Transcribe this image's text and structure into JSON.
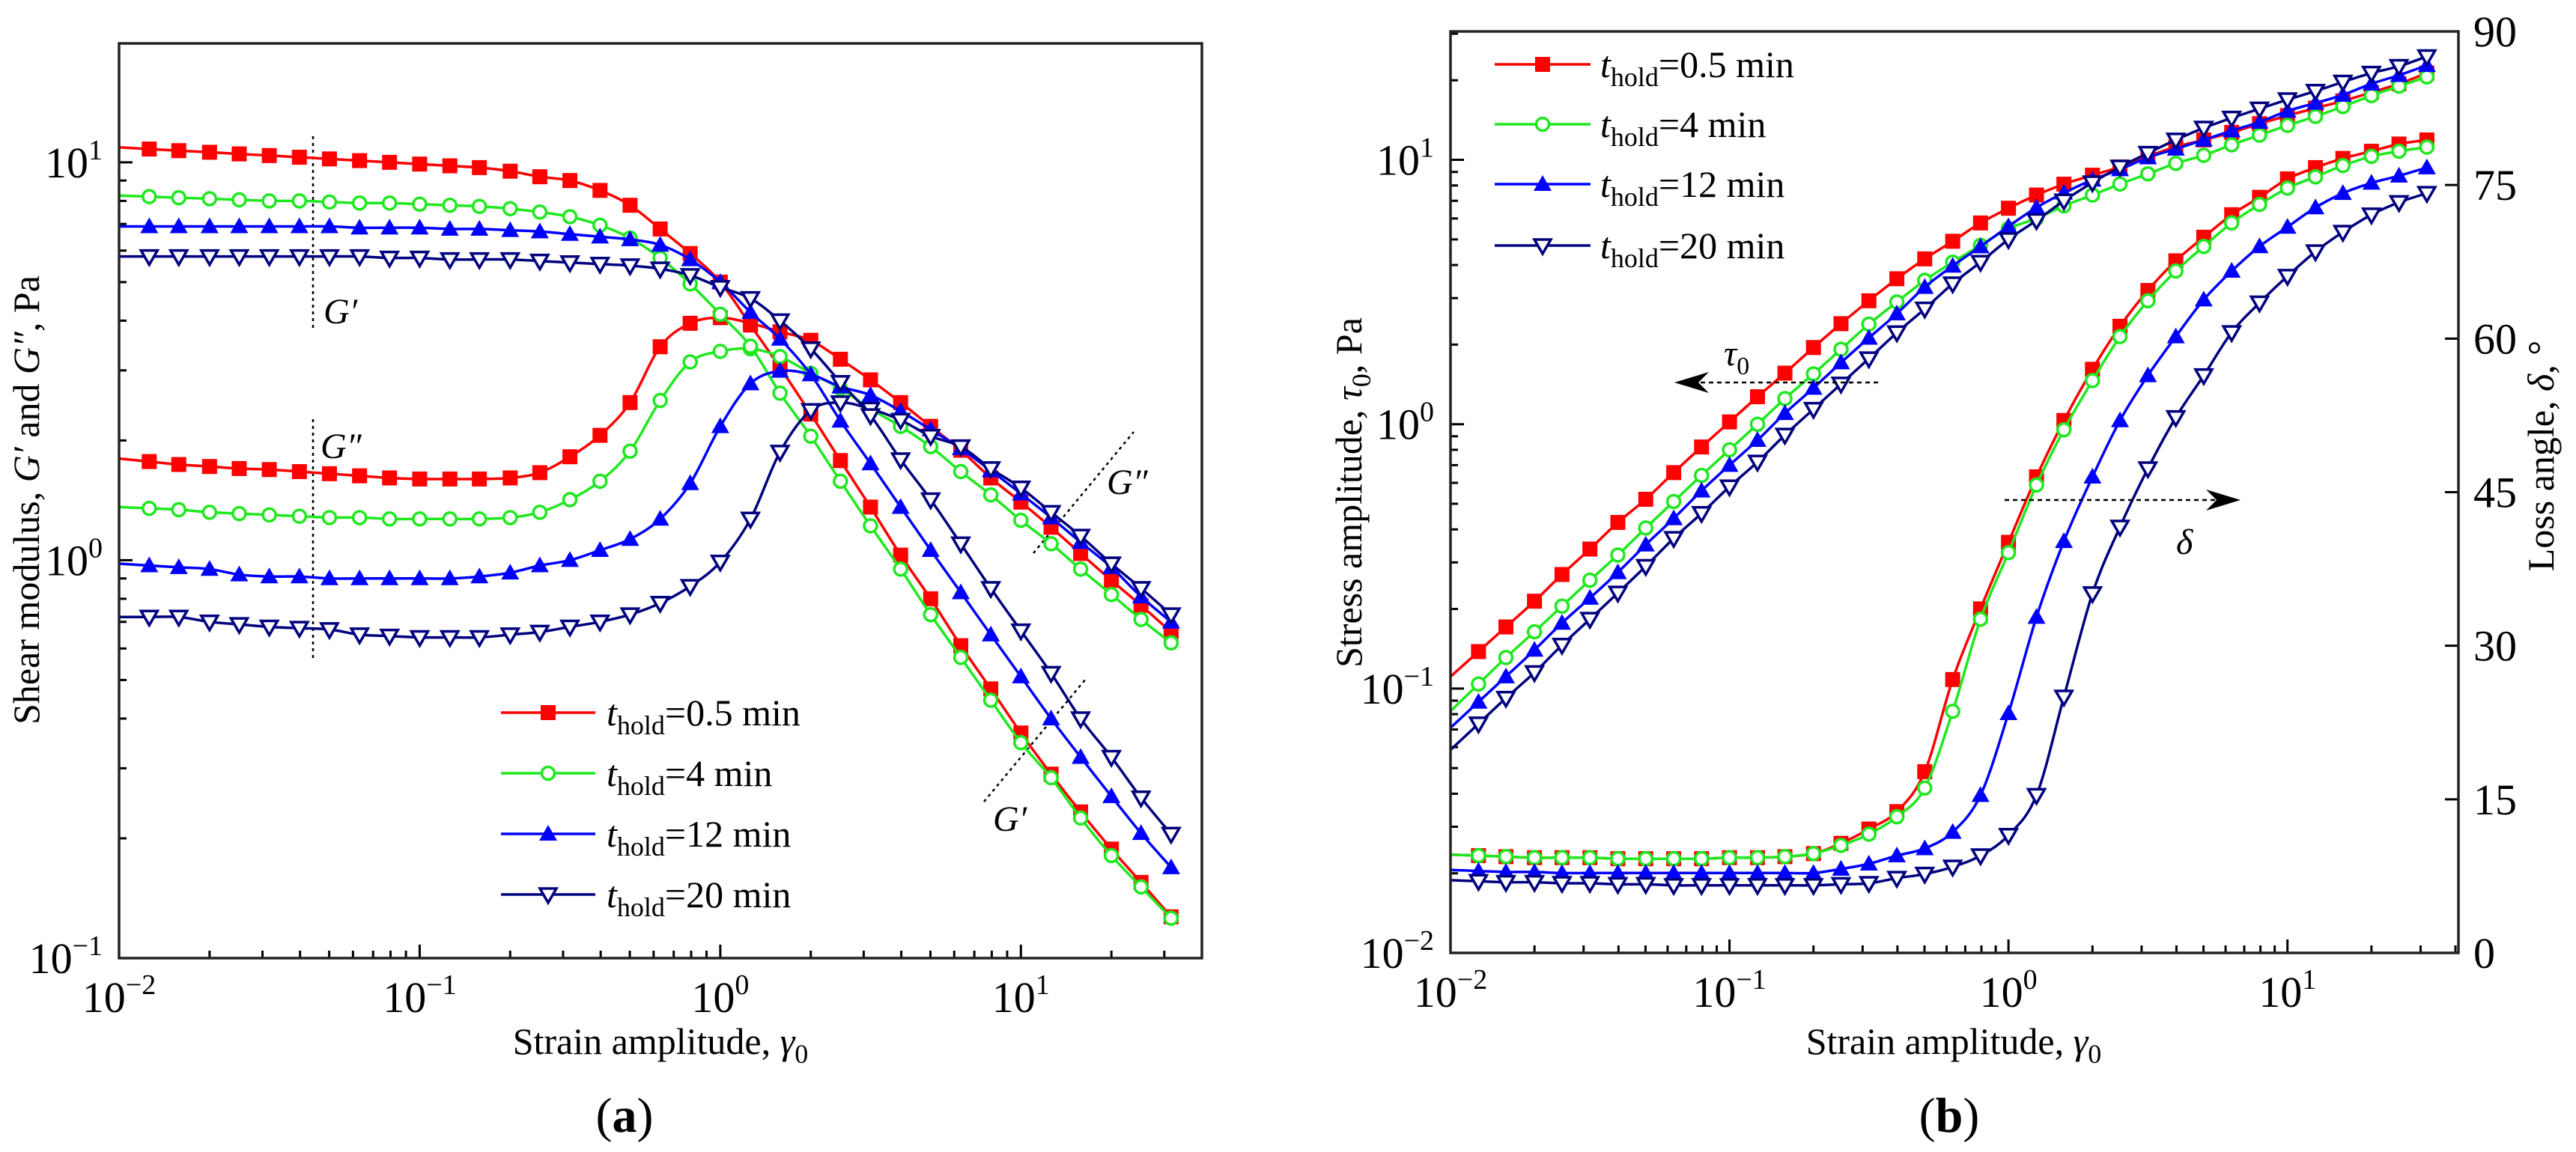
{
  "colors": {
    "t0_5": "#ff0000",
    "t4": "#1ee81e",
    "t12": "#0000ff",
    "t20": "#00007f",
    "axis": "#000000"
  },
  "chart_data": [
    {
      "panel": "(a)",
      "type": "line",
      "xscale": "log",
      "yscale": "log",
      "xlim": [
        0.01,
        40
      ],
      "ylim": [
        0.1,
        19.9
      ],
      "xlabel": [
        {
          "t": "Strain amplitude, "
        },
        {
          "t": "γ",
          "i": true
        },
        {
          "t": "0",
          "sub": true
        }
      ],
      "ylabel": [
        {
          "t": "Shear modulus, "
        },
        {
          "t": "G′",
          "i": true
        },
        {
          "t": " and "
        },
        {
          "t": "G″",
          "i": true
        },
        {
          "t": ", Pa"
        }
      ],
      "xticks": [
        {
          "v": 0.01,
          "base": "10",
          "exp": "−2"
        },
        {
          "v": 0.1,
          "base": "10",
          "exp": "−1"
        },
        {
          "v": 1,
          "base": "10",
          "exp": "0"
        },
        {
          "v": 10,
          "base": "10",
          "exp": "1"
        }
      ],
      "yticks": [
        {
          "v": 0.1,
          "base": "10",
          "exp": "−1"
        },
        {
          "v": 1,
          "base": "10",
          "exp": "0"
        },
        {
          "v": 10,
          "base": "10",
          "exp": "1"
        }
      ],
      "legend_position": "bottom-center",
      "annotations": [
        "G′",
        "G″",
        "G″",
        "G′"
      ],
      "x": [
        0.0126,
        0.0158,
        0.02,
        0.0251,
        0.0316,
        0.0398,
        0.0501,
        0.0631,
        0.0794,
        0.1,
        0.126,
        0.158,
        0.2,
        0.251,
        0.316,
        0.398,
        0.501,
        0.631,
        0.794,
        1,
        1.26,
        1.58,
        2,
        2.51,
        3.16,
        3.98,
        5.01,
        6.31,
        7.94,
        10,
        12.6,
        15.8,
        20,
        25.1,
        31.6
      ],
      "series": [
        {
          "legend": {
            "t": "t",
            "sub": "hold",
            "rest": "=0.5 min"
          },
          "color_key": "t0_5",
          "marker": "square-filled",
          "G_prime": [
            10.8,
            10.7,
            10.6,
            10.5,
            10.4,
            10.3,
            10.2,
            10.1,
            10.0,
            9.9,
            9.8,
            9.7,
            9.5,
            9.2,
            9.0,
            8.5,
            7.8,
            6.8,
            5.9,
            5.0,
            3.9,
            3.05,
            2.33,
            1.78,
            1.36,
            1.03,
            0.8,
            0.61,
            0.475,
            0.368,
            0.29,
            0.233,
            0.188,
            0.155,
            0.127
          ],
          "G_double_prime": [
            1.77,
            1.74,
            1.72,
            1.7,
            1.69,
            1.67,
            1.65,
            1.63,
            1.61,
            1.6,
            1.6,
            1.6,
            1.61,
            1.66,
            1.82,
            2.06,
            2.49,
            3.44,
            3.94,
            4.07,
            3.94,
            3.75,
            3.57,
            3.2,
            2.84,
            2.49,
            2.17,
            1.89,
            1.61,
            1.4,
            1.21,
            1.04,
            0.89,
            0.77,
            0.66
          ]
        },
        {
          "legend": {
            "t": "t",
            "sub": "hold",
            "rest": "=4 min"
          },
          "color_key": "t4",
          "marker": "circle-open",
          "G_prime": [
            8.2,
            8.15,
            8.1,
            8.05,
            8.0,
            8.0,
            7.95,
            7.9,
            7.9,
            7.85,
            7.8,
            7.75,
            7.65,
            7.5,
            7.3,
            6.95,
            6.45,
            5.75,
            4.95,
            4.15,
            3.45,
            2.63,
            2.05,
            1.58,
            1.22,
            0.95,
            0.73,
            0.57,
            0.445,
            0.348,
            0.284,
            0.225,
            0.181,
            0.151,
            0.126
          ],
          "G_double_prime": [
            1.35,
            1.34,
            1.32,
            1.31,
            1.3,
            1.29,
            1.28,
            1.28,
            1.27,
            1.27,
            1.27,
            1.27,
            1.28,
            1.32,
            1.42,
            1.58,
            1.88,
            2.52,
            3.15,
            3.35,
            3.4,
            3.25,
            2.95,
            2.7,
            2.4,
            2.17,
            1.93,
            1.67,
            1.46,
            1.26,
            1.1,
            0.95,
            0.82,
            0.71,
            0.62
          ]
        },
        {
          "legend": {
            "t": "t",
            "sub": "hold",
            "rest": "=12 min"
          },
          "color_key": "t12",
          "marker": "triangle-up-filled",
          "G_prime": [
            6.9,
            6.9,
            6.9,
            6.9,
            6.9,
            6.9,
            6.9,
            6.85,
            6.85,
            6.85,
            6.8,
            6.8,
            6.75,
            6.7,
            6.6,
            6.5,
            6.4,
            6.2,
            5.7,
            5.0,
            4.2,
            3.6,
            2.93,
            2.24,
            1.75,
            1.36,
            1.06,
            0.83,
            0.65,
            0.51,
            0.4,
            0.32,
            0.255,
            0.206,
            0.169
          ],
          "G_double_prime": [
            0.97,
            0.96,
            0.95,
            0.92,
            0.91,
            0.91,
            0.9,
            0.9,
            0.9,
            0.9,
            0.9,
            0.91,
            0.93,
            0.97,
            1.0,
            1.06,
            1.13,
            1.27,
            1.56,
            2.17,
            2.78,
            2.99,
            2.93,
            2.73,
            2.6,
            2.37,
            2.13,
            1.91,
            1.68,
            1.47,
            1.28,
            1.11,
            0.96,
            0.81,
            0.7
          ]
        },
        {
          "legend": {
            "t": "t",
            "sub": "hold",
            "rest": "=20 min"
          },
          "color_key": "t20",
          "marker": "triangle-down-open",
          "G_prime": [
            5.8,
            5.8,
            5.8,
            5.8,
            5.8,
            5.8,
            5.8,
            5.8,
            5.75,
            5.75,
            5.7,
            5.7,
            5.7,
            5.65,
            5.6,
            5.55,
            5.5,
            5.4,
            5.2,
            4.85,
            4.55,
            4.0,
            3.4,
            2.8,
            2.31,
            1.79,
            1.42,
            1.1,
            0.85,
            0.665,
            0.52,
            0.4,
            0.32,
            0.253,
            0.205
          ],
          "G_double_prime": [
            0.72,
            0.72,
            0.7,
            0.69,
            0.68,
            0.675,
            0.67,
            0.65,
            0.645,
            0.64,
            0.64,
            0.64,
            0.65,
            0.66,
            0.68,
            0.7,
            0.73,
            0.78,
            0.86,
            0.99,
            1.27,
            1.87,
            2.38,
            2.49,
            2.4,
            2.25,
            2.05,
            1.93,
            1.7,
            1.52,
            1.32,
            1.15,
            0.98,
            0.85,
            0.73
          ]
        }
      ]
    },
    {
      "panel": "(b)",
      "type": "line",
      "xscale": "log",
      "yscale": "log",
      "y2scale": "linear",
      "xlim": [
        0.01,
        41
      ],
      "ylim": [
        0.01,
        30.6
      ],
      "y2lim": [
        0,
        90
      ],
      "xlabel": [
        {
          "t": "Strain amplitude, "
        },
        {
          "t": "γ",
          "i": true
        },
        {
          "t": "0",
          "sub": true
        }
      ],
      "ylabel": [
        {
          "t": "Stress amplitude, "
        },
        {
          "t": "τ",
          "i": true
        },
        {
          "t": "0",
          "sub": true
        },
        {
          "t": ", Pa"
        }
      ],
      "y2label": [
        {
          "t": "Loss angle, "
        },
        {
          "t": "δ",
          "i": true
        },
        {
          "t": ", °"
        }
      ],
      "xticks": [
        {
          "v": 0.01,
          "base": "10",
          "exp": "−2"
        },
        {
          "v": 0.1,
          "base": "10",
          "exp": "−1"
        },
        {
          "v": 1,
          "base": "10",
          "exp": "0"
        },
        {
          "v": 10,
          "base": "10",
          "exp": "1"
        }
      ],
      "yticks": [
        {
          "v": 0.01,
          "base": "10",
          "exp": "−2"
        },
        {
          "v": 0.1,
          "base": "10",
          "exp": "−1"
        },
        {
          "v": 1,
          "base": "10",
          "exp": "0"
        },
        {
          "v": 10,
          "base": "10",
          "exp": "1"
        }
      ],
      "y2ticks": [
        "0",
        "15",
        "30",
        "45",
        "60",
        "75",
        "90"
      ],
      "legend_position": "top-left",
      "annotations": [
        {
          "t": "τ",
          "sub": "0"
        },
        {
          "t": "δ"
        }
      ],
      "x": [
        0.0126,
        0.0158,
        0.02,
        0.0251,
        0.0316,
        0.0398,
        0.0501,
        0.0631,
        0.0794,
        0.1,
        0.126,
        0.158,
        0.2,
        0.251,
        0.316,
        0.398,
        0.501,
        0.631,
        0.794,
        1,
        1.26,
        1.58,
        2,
        2.51,
        3.16,
        3.98,
        5.01,
        6.31,
        7.94,
        10,
        12.6,
        15.8,
        20,
        25.1,
        31.6
      ],
      "series": [
        {
          "legend": {
            "t": "t",
            "sub": "hold",
            "rest": "=0.5 min"
          },
          "color_key": "t0_5",
          "marker": "square-filled",
          "tau0": [
            0.138,
            0.171,
            0.214,
            0.27,
            0.337,
            0.425,
            0.52,
            0.656,
            0.82,
            1.02,
            1.27,
            1.56,
            1.95,
            2.4,
            2.93,
            3.55,
            4.22,
            4.92,
            5.77,
            6.56,
            7.36,
            8.09,
            8.75,
            9.4,
            10.3,
            11.2,
            11.9,
            12.7,
            13.7,
            14.7,
            15.7,
            16.7,
            18.0,
            19.4,
            21.3
          ],
          "delta": [
            9.5,
            9.4,
            9.3,
            9.3,
            9.3,
            9.2,
            9.2,
            9.2,
            9.2,
            9.3,
            9.3,
            9.4,
            9.7,
            10.7,
            12.1,
            13.8,
            17.7,
            26.7,
            33.6,
            40.1,
            46.5,
            52.0,
            57.0,
            61.2,
            64.7,
            67.6,
            69.9,
            72.1,
            73.8,
            75.6,
            76.7,
            77.6,
            78.3,
            79.0,
            79.4
          ]
        },
        {
          "legend": {
            "t": "t",
            "sub": "hold",
            "rest": "=4 min"
          },
          "color_key": "t4",
          "marker": "circle-open",
          "tau0": [
            0.104,
            0.131,
            0.164,
            0.205,
            0.257,
            0.32,
            0.405,
            0.51,
            0.64,
            0.8,
            1.0,
            1.25,
            1.55,
            1.92,
            2.39,
            2.9,
            3.5,
            4.1,
            4.75,
            5.5,
            6.0,
            6.7,
            7.36,
            8.1,
            8.85,
            9.7,
            10.4,
            11.4,
            12.4,
            13.5,
            14.6,
            15.9,
            17.5,
            19.0,
            20.6
          ],
          "delta": [
            9.5,
            9.4,
            9.3,
            9.3,
            9.3,
            9.2,
            9.2,
            9.2,
            9.2,
            9.3,
            9.3,
            9.4,
            9.7,
            10.5,
            11.6,
            13.3,
            16.1,
            23.6,
            32.6,
            39.1,
            45.7,
            51.1,
            55.9,
            60.2,
            63.7,
            66.6,
            69.0,
            71.3,
            73.1,
            74.7,
            75.8,
            76.9,
            77.8,
            78.3,
            78.7
          ]
        },
        {
          "legend": {
            "t": "t",
            "sub": "hold",
            "rest": "=12 min"
          },
          "color_key": "t12",
          "marker": "triangle-up-filled",
          "tau0": [
            0.089,
            0.111,
            0.14,
            0.177,
            0.22,
            0.275,
            0.35,
            0.44,
            0.56,
            0.7,
            0.87,
            1.1,
            1.37,
            1.71,
            2.12,
            2.62,
            3.3,
            3.97,
            4.7,
            5.6,
            6.6,
            7.5,
            8.4,
            9.2,
            10.2,
            11.0,
            11.9,
            12.9,
            13.9,
            15.3,
            16.4,
            17.6,
            19.4,
            20.9,
            22.8
          ],
          "delta": [
            8.0,
            7.9,
            7.9,
            7.8,
            7.8,
            7.8,
            7.8,
            7.8,
            7.8,
            7.8,
            7.8,
            7.8,
            7.8,
            8.2,
            8.7,
            9.5,
            10.2,
            11.8,
            15.4,
            23.4,
            32.8,
            40.2,
            46.5,
            52.0,
            56.4,
            60.2,
            63.8,
            66.6,
            69.0,
            70.9,
            72.8,
            74.2,
            75.2,
            75.9,
            76.7
          ]
        },
        {
          "legend": {
            "t": "t",
            "sub": "hold",
            "rest": "=20 min"
          },
          "color_key": "t20",
          "marker": "triangle-down-open",
          "tau0": [
            0.0736,
            0.092,
            0.115,
            0.146,
            0.183,
            0.23,
            0.29,
            0.37,
            0.46,
            0.58,
            0.72,
            0.91,
            1.14,
            1.42,
            1.77,
            2.22,
            2.73,
            3.4,
            4.1,
            5.0,
            5.9,
            7.0,
            8.2,
            9.4,
            10.6,
            11.9,
            13.2,
            14.4,
            15.6,
            16.9,
            18.2,
            19.7,
            21.3,
            22.6,
            24.6
          ],
          "delta": [
            7.0,
            6.9,
            6.9,
            6.8,
            6.8,
            6.7,
            6.7,
            6.6,
            6.6,
            6.6,
            6.6,
            6.6,
            6.6,
            6.7,
            6.8,
            7.3,
            7.7,
            8.4,
            9.5,
            11.5,
            15.4,
            25.0,
            35.1,
            41.6,
            47.3,
            52.3,
            56.4,
            60.6,
            63.5,
            66.1,
            68.5,
            70.4,
            72.1,
            73.3,
            74.2
          ]
        }
      ]
    }
  ]
}
